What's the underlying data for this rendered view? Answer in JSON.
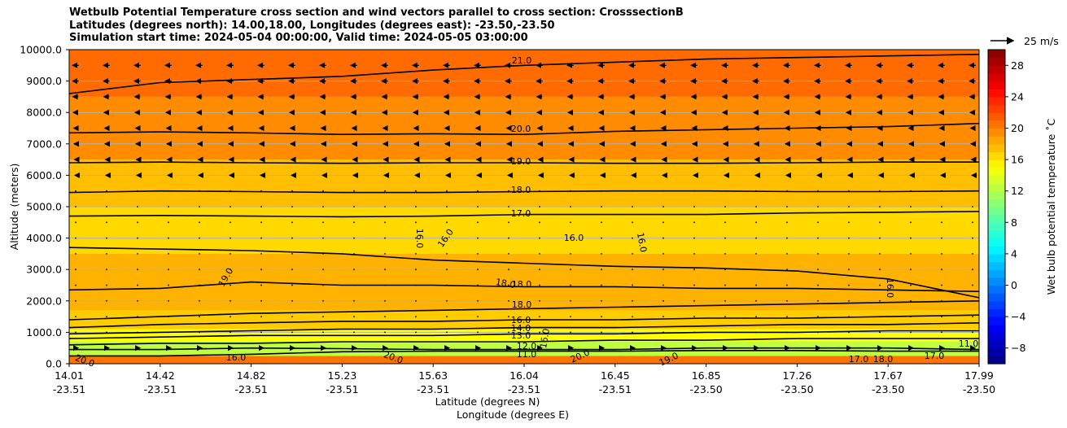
{
  "chart_data": {
    "type": "contourf",
    "title_lines": [
      "Wetbulb Potential Temperature cross section and wind vectors parallel to cross section: CrosssectionB",
      "Latitudes (degrees north): 14.00,18.00, Longitudes (degrees east): -23.50,-23.50",
      "Simulation start time: 2024-05-04 00:00:00, Valid time: 2024-05-05 03:00:00"
    ],
    "xlabel_lat": "Latitude (degrees N)",
    "xlabel_lon": "Longitude (degrees E)",
    "ylabel": "Altitude (meters)",
    "x_ticks": [
      {
        "lat": "14.01",
        "lon": "-23.51"
      },
      {
        "lat": "14.42",
        "lon": "-23.51"
      },
      {
        "lat": "14.82",
        "lon": "-23.51"
      },
      {
        "lat": "15.23",
        "lon": "-23.51"
      },
      {
        "lat": "15.63",
        "lon": "-23.51"
      },
      {
        "lat": "16.04",
        "lon": "-23.51"
      },
      {
        "lat": "16.45",
        "lon": "-23.51"
      },
      {
        "lat": "16.85",
        "lon": "-23.50"
      },
      {
        "lat": "17.26",
        "lon": "-23.50"
      },
      {
        "lat": "17.67",
        "lon": "-23.50"
      },
      {
        "lat": "17.99",
        "lon": "-23.50"
      }
    ],
    "y_ticks": [
      "0.0",
      "1000.0",
      "2000.0",
      "3000.0",
      "4000.0",
      "5000.0",
      "6000.0",
      "7000.0",
      "8000.0",
      "9000.0",
      "10000.0"
    ],
    "ylim": [
      0,
      10000
    ],
    "colorbar": {
      "label": "Wet bulb potential temperature ˚C",
      "range": [
        -10,
        30
      ],
      "ticks": [
        "−8",
        "−4",
        "0",
        "4",
        "8",
        "12",
        "16",
        "20",
        "24",
        "28"
      ]
    },
    "quiver_key": "25 m/s",
    "temperature_bands": [
      {
        "alt_from": 0,
        "alt_to": 250,
        "value": 20.5
      },
      {
        "alt_from": 250,
        "alt_to": 700,
        "value": 12.5
      },
      {
        "alt_from": 700,
        "alt_to": 1100,
        "value": 15
      },
      {
        "alt_from": 1100,
        "alt_to": 1700,
        "value": 17
      },
      {
        "alt_from": 1700,
        "alt_to": 3500,
        "value": 18
      },
      {
        "alt_from": 3500,
        "alt_to": 5000,
        "value": 16.5
      },
      {
        "alt_from": 5000,
        "alt_to": 6500,
        "value": 17.5
      },
      {
        "alt_from": 6500,
        "alt_to": 8500,
        "value": 19.5
      },
      {
        "alt_from": 8500,
        "alt_to": 10000,
        "value": 20.8
      }
    ],
    "contour_lines": [
      {
        "value": "21.0",
        "alts": [
          8600,
          8950,
          9050,
          9150,
          9350,
          9500,
          9600,
          9700,
          9750,
          9800,
          9850
        ]
      },
      {
        "value": "20.0",
        "alts": [
          7350,
          7380,
          7350,
          7300,
          7320,
          7300,
          7400,
          7450,
          7500,
          7550,
          7650
        ]
      },
      {
        "value": "19.0",
        "alts": [
          6400,
          6420,
          6400,
          6380,
          6400,
          6400,
          6380,
          6380,
          6400,
          6420,
          6420
        ]
      },
      {
        "value": "18.0",
        "alts": [
          5450,
          5500,
          5480,
          5450,
          5450,
          5480,
          5500,
          5500,
          5480,
          5480,
          5500
        ]
      },
      {
        "value": "17.0",
        "alts": [
          4700,
          4720,
          4700,
          4680,
          4700,
          4750,
          4750,
          4750,
          4800,
          4820,
          4850
        ]
      },
      {
        "value": "16.0",
        "alts": [
          3700,
          3650,
          3600,
          3500,
          3300,
          3200,
          3100,
          3050,
          2950,
          2700,
          2100
        ]
      },
      {
        "value": "18.0",
        "alts": [
          2350,
          2400,
          2600,
          2500,
          2500,
          2450,
          2450,
          2400,
          2400,
          2350,
          2300
        ]
      },
      {
        "value": "18.0",
        "alts": [
          1400,
          1500,
          1600,
          1650,
          1700,
          1750,
          1800,
          1850,
          1900,
          1950,
          2000
        ]
      },
      {
        "value": "16.0",
        "alts": [
          1150,
          1250,
          1300,
          1350,
          1350,
          1400,
          1400,
          1450,
          1450,
          1500,
          1550
        ]
      },
      {
        "value": "14.0",
        "alts": [
          950,
          1000,
          1050,
          1100,
          1100,
          1150,
          1150,
          1200,
          1250,
          1250,
          1300
        ]
      },
      {
        "value": "13.0",
        "alts": [
          800,
          850,
          900,
          900,
          900,
          950,
          950,
          1000,
          1000,
          1050,
          1050
        ]
      },
      {
        "value": "12.0",
        "alts": [
          600,
          650,
          650,
          700,
          700,
          700,
          750,
          750,
          800,
          800,
          800
        ]
      },
      {
        "value": "11.0",
        "alts": [
          450,
          450,
          500,
          480,
          450,
          450,
          450,
          500,
          500,
          500,
          450
        ]
      },
      {
        "value": "20.0",
        "alts": [
          250,
          250,
          300,
          380,
          400,
          400,
          400,
          420,
          420,
          400,
          400
        ]
      }
    ],
    "contour_labels": [
      "21.0",
      "20.0",
      "19.0",
      "18.0",
      "17.0",
      "16.0",
      "16.0",
      "16.0",
      "16.0",
      "19.0",
      "18.0",
      "18.0",
      "18.0",
      "16.0",
      "14.0",
      "13.0",
      "12.0",
      "11.0",
      "20.0",
      "20.0",
      "20.0",
      "19.0",
      "16.0",
      "16.0",
      "17.0",
      "18.0",
      "17.0",
      "11.0",
      "16.0"
    ],
    "wind": {
      "altitudes": [
        9500,
        9000,
        8500,
        8000,
        7500,
        7000,
        6500,
        6000,
        5500,
        5000,
        4500,
        4000,
        3500,
        3000,
        2500,
        2000,
        1500,
        1000,
        500
      ],
      "u_ms": [
        -4,
        -4,
        -3.5,
        -3,
        -2.5,
        -2,
        -1.5,
        -1,
        -0.6,
        -0.4,
        -0.3,
        -0.2,
        -0.2,
        -0.2,
        -0.2,
        -0.2,
        0,
        0.5,
        3
      ]
    }
  }
}
